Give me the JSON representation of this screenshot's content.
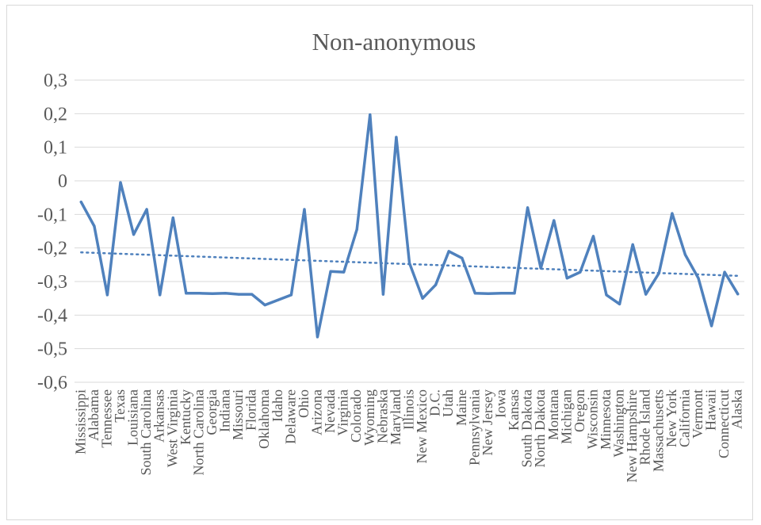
{
  "chart_data": {
    "type": "line",
    "title": "Non-anonymous",
    "xlabel": "",
    "ylabel": "",
    "ylim": [
      -0.6,
      0.3
    ],
    "yticks": [
      0.3,
      0.2,
      0.1,
      0,
      -0.1,
      -0.2,
      -0.3,
      -0.4,
      -0.5,
      -0.6
    ],
    "ytick_labels": [
      "0,3",
      "0,2",
      "0,1",
      "0",
      "-0,1",
      "-0,2",
      "-0,3",
      "-0,4",
      "-0,5",
      "-0,6"
    ],
    "grid": true,
    "legend": "none",
    "categories": [
      "Mississippi",
      "Alabama",
      "Tennessee",
      "Texas",
      "Louisiana",
      "South Carolina",
      "Arkansas",
      "West Virginia",
      "Kentucky",
      "North Carolina",
      "Georgia",
      "Indiana",
      "Missouri",
      "Florida",
      "Oklahoma",
      "Idaho",
      "Delaware",
      "Ohio",
      "Arizona",
      "Nevada",
      "Virginia",
      "Colorado",
      "Wyoming",
      "Nebraska",
      "Maryland",
      "Illinois",
      "New Mexico",
      "D.C.",
      "Utah",
      "Maine",
      "Pennsylvania",
      "New Jersey",
      "Iowa",
      "Kansas",
      "South Dakota",
      "North Dakota",
      "Montana",
      "Michigan",
      "Oregon",
      "Wisconsin",
      "Minnesota",
      "Washington",
      "New Hampshire",
      "Rhode Island",
      "Massachusetts",
      "New York",
      "California",
      "Vermont",
      "Hawaii",
      "Connecticut",
      "Alaska"
    ],
    "series": [
      {
        "values": [
          -0.063,
          -0.135,
          -0.34,
          -0.005,
          -0.16,
          -0.085,
          -0.34,
          -0.11,
          -0.335,
          -0.335,
          -0.336,
          -0.335,
          -0.338,
          -0.338,
          -0.37,
          -0.355,
          -0.34,
          -0.085,
          -0.465,
          -0.27,
          -0.272,
          -0.145,
          0.197,
          -0.338,
          0.13,
          -0.245,
          -0.35,
          -0.31,
          -0.21,
          -0.23,
          -0.335,
          -0.336,
          -0.335,
          -0.335,
          -0.08,
          -0.26,
          -0.118,
          -0.29,
          -0.272,
          -0.165,
          -0.34,
          -0.367,
          -0.19,
          -0.338,
          -0.275,
          -0.097,
          -0.22,
          -0.29,
          -0.432,
          -0.272,
          -0.337
        ],
        "color": "#4f81bd"
      }
    ],
    "trendline": {
      "kind": "linear",
      "start": -0.213,
      "end": -0.283,
      "color": "#4f81bd"
    }
  }
}
